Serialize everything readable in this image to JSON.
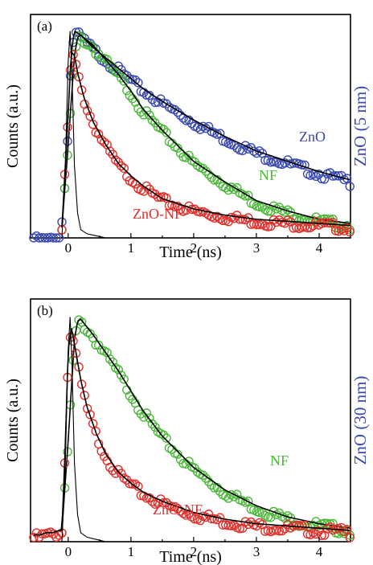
{
  "colors": {
    "ZnO": "#3a4ab0",
    "NF": "#4cb83a",
    "ZnO-NF": "#e0302b",
    "fit": "#000000",
    "irf": "#000000"
  },
  "chart_data": [
    {
      "type": "scatter",
      "panel_label": "(a)",
      "side_label": "ZnO (5 nm)",
      "xlabel": "Time (ns)",
      "ylabel": "Counts (a.u.)",
      "xlim": [
        -0.6,
        4.5
      ],
      "ylim": [
        0,
        1.08
      ],
      "xticks": [
        0,
        1,
        2,
        3,
        4
      ],
      "xtick_labels": [
        "0",
        "1",
        "2",
        "3",
        "4"
      ],
      "grid": false,
      "series": [
        {
          "name": "ZnO",
          "color_key": "ZnO",
          "label_text": "ZnO",
          "x": [
            -0.55,
            -0.45,
            -0.35,
            -0.25,
            -0.15,
            -0.08,
            0.0,
            0.05,
            0.1,
            0.2,
            0.4,
            0.6,
            0.8,
            1.0,
            1.2,
            1.5,
            2.0,
            2.5,
            3.0,
            3.5,
            4.0,
            4.5
          ],
          "y": [
            0.0,
            0.0,
            0.0,
            0.0,
            0.01,
            0.12,
            0.55,
            0.9,
            1.0,
            0.98,
            0.92,
            0.87,
            0.82,
            0.77,
            0.72,
            0.66,
            0.57,
            0.49,
            0.42,
            0.37,
            0.32,
            0.28
          ]
        },
        {
          "name": "NF",
          "color_key": "NF",
          "label_text": "NF",
          "x": [
            -0.1,
            0.0,
            0.1,
            0.15,
            0.2,
            0.4,
            0.6,
            0.8,
            1.0,
            1.2,
            1.5,
            2.0,
            2.5,
            3.0,
            3.5,
            4.0,
            4.5
          ],
          "y": [
            0.05,
            0.45,
            0.88,
            0.97,
            0.98,
            0.93,
            0.86,
            0.79,
            0.71,
            0.62,
            0.52,
            0.37,
            0.27,
            0.18,
            0.13,
            0.09,
            0.07
          ],
          "fit": true
        },
        {
          "name": "ZnO-NF",
          "color_key": "ZnO-NF",
          "label_text": "ZnO-NF",
          "x": [
            -0.1,
            0.0,
            0.05,
            0.1,
            0.15,
            0.25,
            0.4,
            0.6,
            0.8,
            1.0,
            1.2,
            1.5,
            2.0,
            2.5,
            3.0,
            3.5,
            4.0,
            4.5
          ],
          "y": [
            0.05,
            0.6,
            0.9,
            0.88,
            0.8,
            0.68,
            0.56,
            0.45,
            0.36,
            0.3,
            0.25,
            0.19,
            0.14,
            0.11,
            0.09,
            0.08,
            0.07,
            0.06
          ],
          "fit": true
        }
      ],
      "irf": {
        "x": [
          -0.1,
          -0.05,
          0.0,
          0.03,
          0.06,
          0.1,
          0.15,
          0.2,
          0.3,
          0.45,
          0.6
        ],
        "y": [
          0.0,
          0.3,
          0.85,
          1.0,
          0.8,
          0.35,
          0.12,
          0.04,
          0.02,
          0.01,
          0.0
        ]
      }
    },
    {
      "type": "scatter",
      "panel_label": "(b)",
      "side_label": "ZnO (30 nm)",
      "xlabel": "Time (ns)",
      "ylabel": "Counts (a.u.)",
      "xlim": [
        -0.6,
        4.5
      ],
      "ylim": [
        0,
        1.08
      ],
      "xticks": [
        0,
        1,
        2,
        3,
        4
      ],
      "xtick_labels": [
        "0",
        "1",
        "2",
        "3",
        "4"
      ],
      "grid": false,
      "series": [
        {
          "name": "NF",
          "color_key": "NF",
          "label_text": "NF",
          "x": [
            -0.1,
            0.0,
            0.1,
            0.15,
            0.2,
            0.4,
            0.6,
            0.8,
            1.0,
            1.2,
            1.5,
            2.0,
            2.5,
            3.0,
            3.5,
            4.0,
            4.5
          ],
          "y": [
            0.05,
            0.45,
            0.9,
            0.98,
            0.99,
            0.92,
            0.84,
            0.76,
            0.67,
            0.58,
            0.47,
            0.33,
            0.23,
            0.16,
            0.11,
            0.08,
            0.06
          ],
          "fit": true
        },
        {
          "name": "ZnO-NF",
          "color_key": "ZnO-NF",
          "label_text": "ZnO-NF",
          "x": [
            -0.55,
            -0.45,
            -0.35,
            -0.25,
            -0.15,
            -0.1,
            -0.05,
            0.0,
            0.05,
            0.1,
            0.2,
            0.3,
            0.45,
            0.6,
            0.8,
            1.0,
            1.2,
            1.5,
            2.0,
            2.5,
            3.0,
            3.5,
            4.0,
            4.5
          ],
          "y": [
            0.03,
            0.03,
            0.04,
            0.04,
            0.05,
            0.05,
            0.4,
            0.85,
            0.95,
            0.88,
            0.72,
            0.6,
            0.48,
            0.39,
            0.31,
            0.26,
            0.22,
            0.18,
            0.13,
            0.1,
            0.08,
            0.07,
            0.06,
            0.05
          ],
          "fit": true
        }
      ],
      "irf": {
        "x": [
          -0.1,
          -0.05,
          0.0,
          0.03,
          0.06,
          0.1,
          0.15,
          0.2,
          0.3,
          0.45,
          0.6
        ],
        "y": [
          0.0,
          0.3,
          0.85,
          1.0,
          0.8,
          0.35,
          0.12,
          0.04,
          0.02,
          0.01,
          0.0
        ]
      }
    }
  ]
}
